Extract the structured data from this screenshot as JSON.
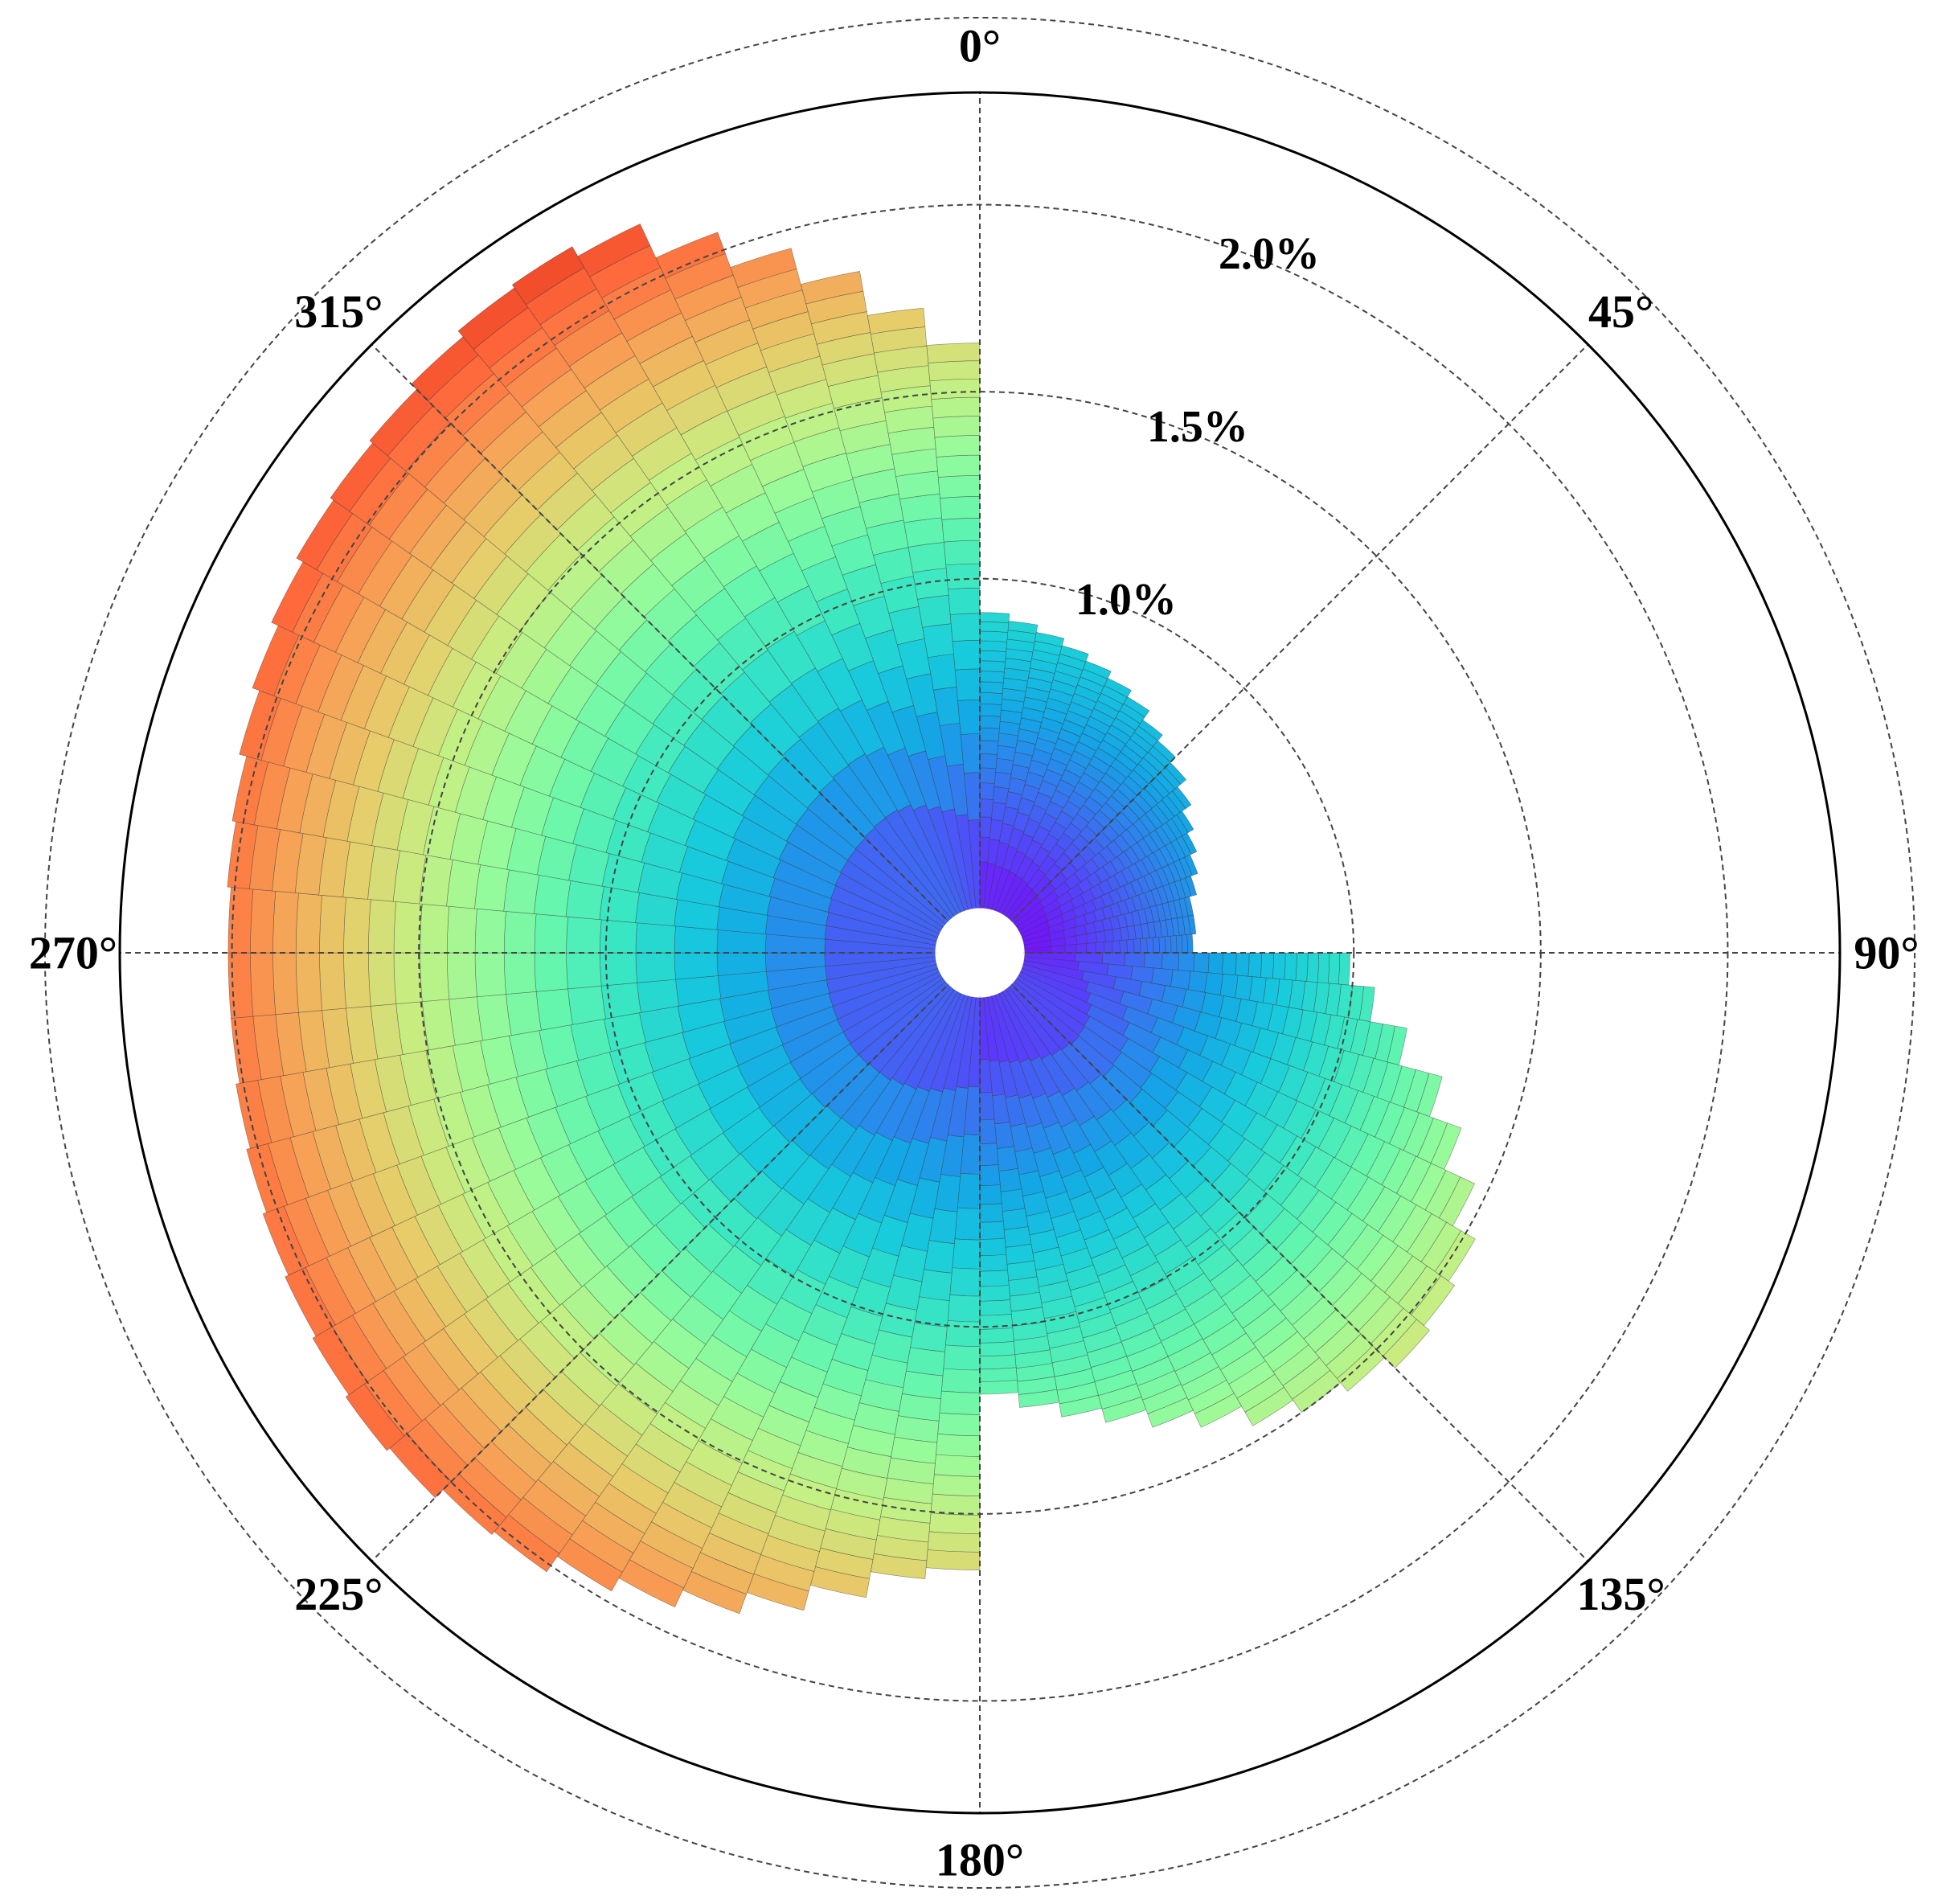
{
  "chart_data": {
    "type": "polar-stacked-bar",
    "title": "",
    "theta_direction": "clockwise",
    "theta_zero": "north",
    "theta_tick_labels": [
      "0°",
      "45°",
      "90°",
      "135°",
      "180°",
      "225°",
      "270°",
      "315°"
    ],
    "theta_tick_values": [
      0,
      45,
      90,
      135,
      180,
      225,
      270,
      315
    ],
    "r_tick_labels": [
      "1.0%",
      "1.5%",
      "2.0%"
    ],
    "r_tick_values": [
      1.0,
      1.5,
      2.0
    ],
    "r_grid_extra": [
      2.5
    ],
    "r_max": 2.3,
    "r_inner": 0.12,
    "grid": true,
    "bin_width_deg": 5,
    "stack_levels": 20,
    "colormap": [
      "#7f00ff",
      "#5a3bfc",
      "#3874f0",
      "#14a6e6",
      "#18cbdc",
      "#38e6c4",
      "#66f6ad",
      "#98fb9a",
      "#c6ef83",
      "#e6cd6a",
      "#f7a156",
      "#ff6a3c",
      "#e8341e"
    ],
    "directions": [
      0,
      5,
      10,
      15,
      20,
      25,
      30,
      35,
      40,
      45,
      50,
      55,
      60,
      65,
      70,
      75,
      80,
      85,
      90,
      95,
      100,
      105,
      110,
      115,
      120,
      125,
      130,
      135,
      140,
      145,
      150,
      155,
      160,
      165,
      170,
      175,
      180,
      185,
      190,
      195,
      200,
      205,
      210,
      215,
      220,
      225,
      230,
      235,
      240,
      245,
      250,
      255,
      260,
      265,
      270,
      275,
      280,
      285,
      290,
      295,
      300,
      305,
      310,
      315,
      320,
      325,
      330,
      335,
      340,
      345,
      350,
      355
    ],
    "totals": [
      0.91,
      0.89,
      0.87,
      0.85,
      0.83,
      0.81,
      0.79,
      0.76,
      0.74,
      0.72,
      0.69,
      0.66,
      0.64,
      0.62,
      0.6,
      0.58,
      0.58,
      0.57,
      0.99,
      1.06,
      1.16,
      1.28,
      1.37,
      1.46,
      1.53,
      1.55,
      1.57,
      1.53,
      1.5,
      1.46,
      1.4,
      1.35,
      1.3,
      1.26,
      1.22,
      1.18,
      1.65,
      1.68,
      1.75,
      1.82,
      1.88,
      1.93,
      1.97,
      2.02,
      2.03,
      2.06,
      2.07,
      2.06,
      2.05,
      2.04,
      2.03,
      2.02,
      2.01,
      2.01,
      2.01,
      2.02,
      2.03,
      2.05,
      2.07,
      2.09,
      2.11,
      2.12,
      2.13,
      2.15,
      2.17,
      2.18,
      2.15,
      2.05,
      1.95,
      1.85,
      1.73,
      1.63
    ]
  }
}
